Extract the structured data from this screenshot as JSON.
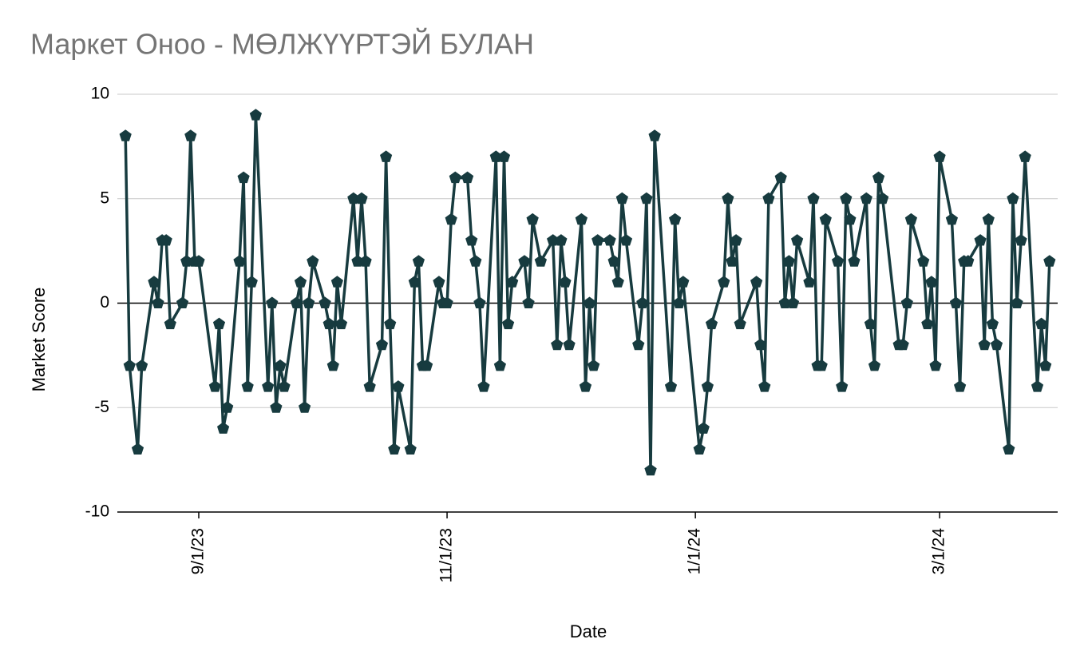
{
  "chart_data": {
    "type": "line",
    "title": "Маркет Оноо - МӨЛЖҮҮРТЭЙ БУЛАН",
    "x_label": "Date",
    "y_label": "Market Score",
    "color": "#173b3f",
    "grid": true,
    "xlim": [
      "8/12/23",
      "3/30/24"
    ],
    "xticks": [
      "9/1/23",
      "11/1/23",
      "1/1/24",
      "3/1/24"
    ],
    "ylim": [
      -10,
      10
    ],
    "yticks": [
      -10,
      -5,
      0,
      5,
      10
    ],
    "x": [
      "8/14/23",
      "8/15/23",
      "8/17/23",
      "8/18/23",
      "8/21/23",
      "8/22/23",
      "8/23/23",
      "8/24/23",
      "8/25/23",
      "8/28/23",
      "8/29/23",
      "8/30/23",
      "8/31/23",
      "9/1/23",
      "9/5/23",
      "9/6/23",
      "9/7/23",
      "9/8/23",
      "9/11/23",
      "9/12/23",
      "9/13/23",
      "9/14/23",
      "9/15/23",
      "9/18/23",
      "9/19/23",
      "9/20/23",
      "9/21/23",
      "9/22/23",
      "9/25/23",
      "9/26/23",
      "9/27/23",
      "9/28/23",
      "9/29/23",
      "10/2/23",
      "10/3/23",
      "10/4/23",
      "10/5/23",
      "10/6/23",
      "10/9/23",
      "10/10/23",
      "10/11/23",
      "10/12/23",
      "10/13/23",
      "10/16/23",
      "10/17/23",
      "10/18/23",
      "10/19/23",
      "10/20/23",
      "10/23/23",
      "10/24/23",
      "10/25/23",
      "10/26/23",
      "10/27/23",
      "10/30/23",
      "10/31/23",
      "11/1/23",
      "11/2/23",
      "11/3/23",
      "11/6/23",
      "11/7/23",
      "11/8/23",
      "11/9/23",
      "11/10/23",
      "11/13/23",
      "11/14/23",
      "11/15/23",
      "11/16/23",
      "11/17/23",
      "11/20/23",
      "11/21/23",
      "11/22/23",
      "11/24/23",
      "11/27/23",
      "11/28/23",
      "11/29/23",
      "11/30/23",
      "12/1/23",
      "12/4/23",
      "12/5/23",
      "12/6/23",
      "12/7/23",
      "12/8/23",
      "12/11/23",
      "12/12/23",
      "12/13/23",
      "12/14/23",
      "12/15/23",
      "12/18/23",
      "12/19/23",
      "12/20/23",
      "12/21/23",
      "12/22/23",
      "12/26/23",
      "12/27/23",
      "12/28/23",
      "12/29/23",
      "1/2/24",
      "1/3/24",
      "1/4/24",
      "1/5/24",
      "1/8/24",
      "1/9/24",
      "1/10/24",
      "1/11/24",
      "1/12/24",
      "1/16/24",
      "1/17/24",
      "1/18/24",
      "1/19/24",
      "1/22/24",
      "1/23/24",
      "1/24/24",
      "1/25/24",
      "1/26/24",
      "1/29/24",
      "1/30/24",
      "1/31/24",
      "2/1/24",
      "2/2/24",
      "2/5/24",
      "2/6/24",
      "2/7/24",
      "2/8/24",
      "2/9/24",
      "2/12/24",
      "2/13/24",
      "2/14/24",
      "2/15/24",
      "2/16/24",
      "2/20/24",
      "2/21/24",
      "2/22/24",
      "2/23/24",
      "2/26/24",
      "2/27/24",
      "2/28/24",
      "2/29/24",
      "3/1/24",
      "3/4/24",
      "3/5/24",
      "3/6/24",
      "3/7/24",
      "3/8/24",
      "3/11/24",
      "3/12/24",
      "3/13/24",
      "3/14/24",
      "3/15/24",
      "3/18/24",
      "3/19/24",
      "3/20/24",
      "3/21/24",
      "3/22/24",
      "3/25/24",
      "3/26/24",
      "3/27/24",
      "3/28/24"
    ],
    "values": [
      8,
      -3,
      -7,
      -3,
      1,
      0,
      3,
      3,
      -1,
      0,
      2,
      8,
      2,
      2,
      -4,
      -1,
      -6,
      -5,
      2,
      6,
      -4,
      1,
      9,
      -4,
      0,
      -5,
      -3,
      -4,
      0,
      1,
      -5,
      0,
      2,
      0,
      -1,
      -3,
      1,
      -1,
      5,
      2,
      5,
      2,
      -4,
      -2,
      7,
      -1,
      -7,
      -4,
      -7,
      1,
      2,
      -3,
      -3,
      1,
      0,
      0,
      4,
      6,
      6,
      3,
      2,
      0,
      -4,
      7,
      -3,
      7,
      -1,
      1,
      2,
      0,
      4,
      2,
      3,
      -2,
      3,
      1,
      -2,
      4,
      -4,
      0,
      -3,
      3,
      3,
      2,
      1,
      5,
      3,
      -2,
      0,
      5,
      -8,
      8,
      -4,
      4,
      0,
      1,
      -7,
      -6,
      -4,
      -1,
      1,
      5,
      2,
      3,
      -1,
      1,
      -2,
      -4,
      5,
      6,
      0,
      2,
      0,
      3,
      1,
      5,
      -3,
      -3,
      4,
      2,
      -4,
      5,
      4,
      2,
      5,
      -1,
      -3,
      6,
      5,
      -2,
      -2,
      0,
      4,
      2,
      -1,
      1,
      -3,
      7,
      4,
      0,
      -4,
      2,
      2,
      3,
      -2,
      4,
      -1,
      -2,
      -7,
      5,
      0,
      3,
      7,
      -4,
      -1,
      -3,
      2
    ]
  }
}
